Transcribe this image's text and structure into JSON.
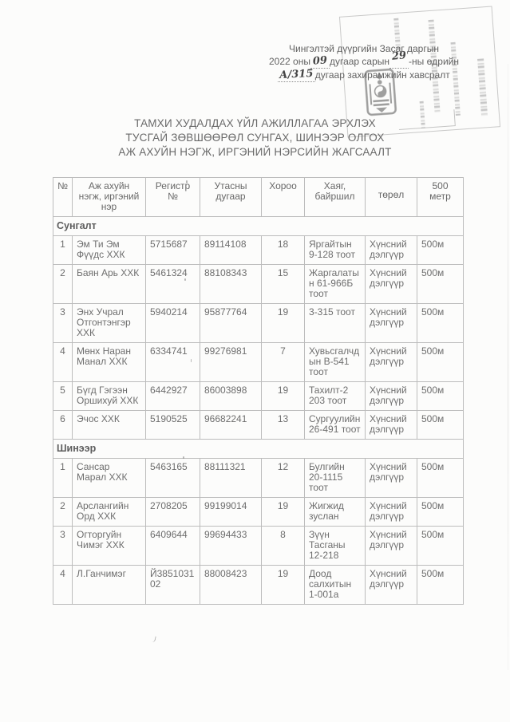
{
  "colors": {
    "ink": "#6a6a6a",
    "table_border": "#bcbcbc",
    "stamp_gray": "#8f8f8f",
    "handwriting_ink": "#454545"
  },
  "icons": {
    "stamp_emblem": "soyombo-emblem"
  },
  "header_note": {
    "line1": "Чингэлтэй дүүргийн Засаг даргын",
    "line2_prefix": "2022 оны",
    "month_handwritten": "09",
    "line2_middle": "дугаар сарын",
    "day_handwritten": "29",
    "line2_suffix": "-ны өдрийн",
    "order_number_handwritten": "А/315",
    "line3_suffix": "дугаар захирамжийн хавсралт"
  },
  "title_lines": [
    "ТАМХИ ХУДАЛДАХ ҮЙЛ АЖИЛЛАГАА ЭРХЛЭХ",
    "ТУСГАЙ ЗӨВШӨӨРӨЛ СУНГАХ, ШИНЭЭР ОЛГОХ",
    "АЖ АХУЙН НЭГЖ, ИРГЭНИЙ НЭРСИЙН ЖАГСААЛТ"
  ],
  "table": {
    "columns": [
      "№",
      "Аж ахуйн нэгж, иргэний нэр",
      "Регистр №",
      "Утасны дугаар",
      "Хороо",
      "Хаяг, байршил",
      "төрөл",
      "500 метр"
    ],
    "sections": [
      {
        "label": "Сунгалт",
        "rows": [
          {
            "no": "1",
            "name": "Эм Ти Эм Фүүдс ХХК",
            "register": "5715687",
            "phone": "89114108",
            "khoroo": "18",
            "address": "Яргайтын 9-128 тоот",
            "type": "Хүнсний дэлгүүр",
            "distance": "500м"
          },
          {
            "no": "2",
            "name": "Баян Арь ХХК",
            "register": "5461324",
            "phone": "88108343",
            "khoroo": "15",
            "address": "Жаргалатын 61-966Б тоот",
            "type": "Хүнсний дэлгүүр",
            "distance": "500м"
          },
          {
            "no": "3",
            "name": "Энх Учрал Отгонтэнгэр ХХК",
            "register": "5940214",
            "phone": "95877764",
            "khoroo": "19",
            "address": "3-315 тоот",
            "type": "Хүнсний дэлгүүр",
            "distance": "500м"
          },
          {
            "no": "4",
            "name": "Мөнх Наран Манал ХХК",
            "register": "6334741",
            "phone": "99276981",
            "khoroo": "7",
            "address": "Хувьсгалчдын В-541 тоот",
            "type": "Хүнсний дэлгүүр",
            "distance": "500м"
          },
          {
            "no": "5",
            "name": "Бүгд Гэгээн Оршихуй ХХК",
            "register": "6442927",
            "phone": "86003898",
            "khoroo": "19",
            "address": "Тахилт-2 203 тоот",
            "type": "Хүнсний дэлгүүр",
            "distance": "500м"
          },
          {
            "no": "6",
            "name": "Эчос ХХК",
            "register": "5190525",
            "phone": "96682241",
            "khoroo": "13",
            "address": "Сургуулийн 26-491 тоот",
            "type": "Хүнсний дэлгүүр",
            "distance": "500м"
          }
        ]
      },
      {
        "label": "Шинээр",
        "rows": [
          {
            "no": "1",
            "name": "Сансар Марал ХХК",
            "register": "5463165",
            "phone": "88111321",
            "khoroo": "12",
            "address": "Булгийн 20-1115 тоот",
            "type": "Хүнсний дэлгүүр",
            "distance": "500м"
          },
          {
            "no": "2",
            "name": "Арслангийн Орд ХХК",
            "register": "2708205",
            "phone": "99199014",
            "khoroo": "19",
            "address": "Жигжид зуслан",
            "type": "Хүнсний дэлгүүр",
            "distance": "500м"
          },
          {
            "no": "3",
            "name": "Огторгуйн Чимэг ХХК",
            "register": "6409644",
            "phone": "99694433",
            "khoroo": "8",
            "address": "Зүүн Тасганы 12-218",
            "type": "Хүнсний дэлгүүр",
            "distance": "500м"
          },
          {
            "no": "4",
            "name": "Л.Ганчимэг",
            "register": "Й385103102",
            "phone": "88008423",
            "khoroo": "19",
            "address": "Доод салхитын 1-001а",
            "type": "Хүнсний дэлгүүр",
            "distance": "500м"
          }
        ]
      }
    ]
  }
}
